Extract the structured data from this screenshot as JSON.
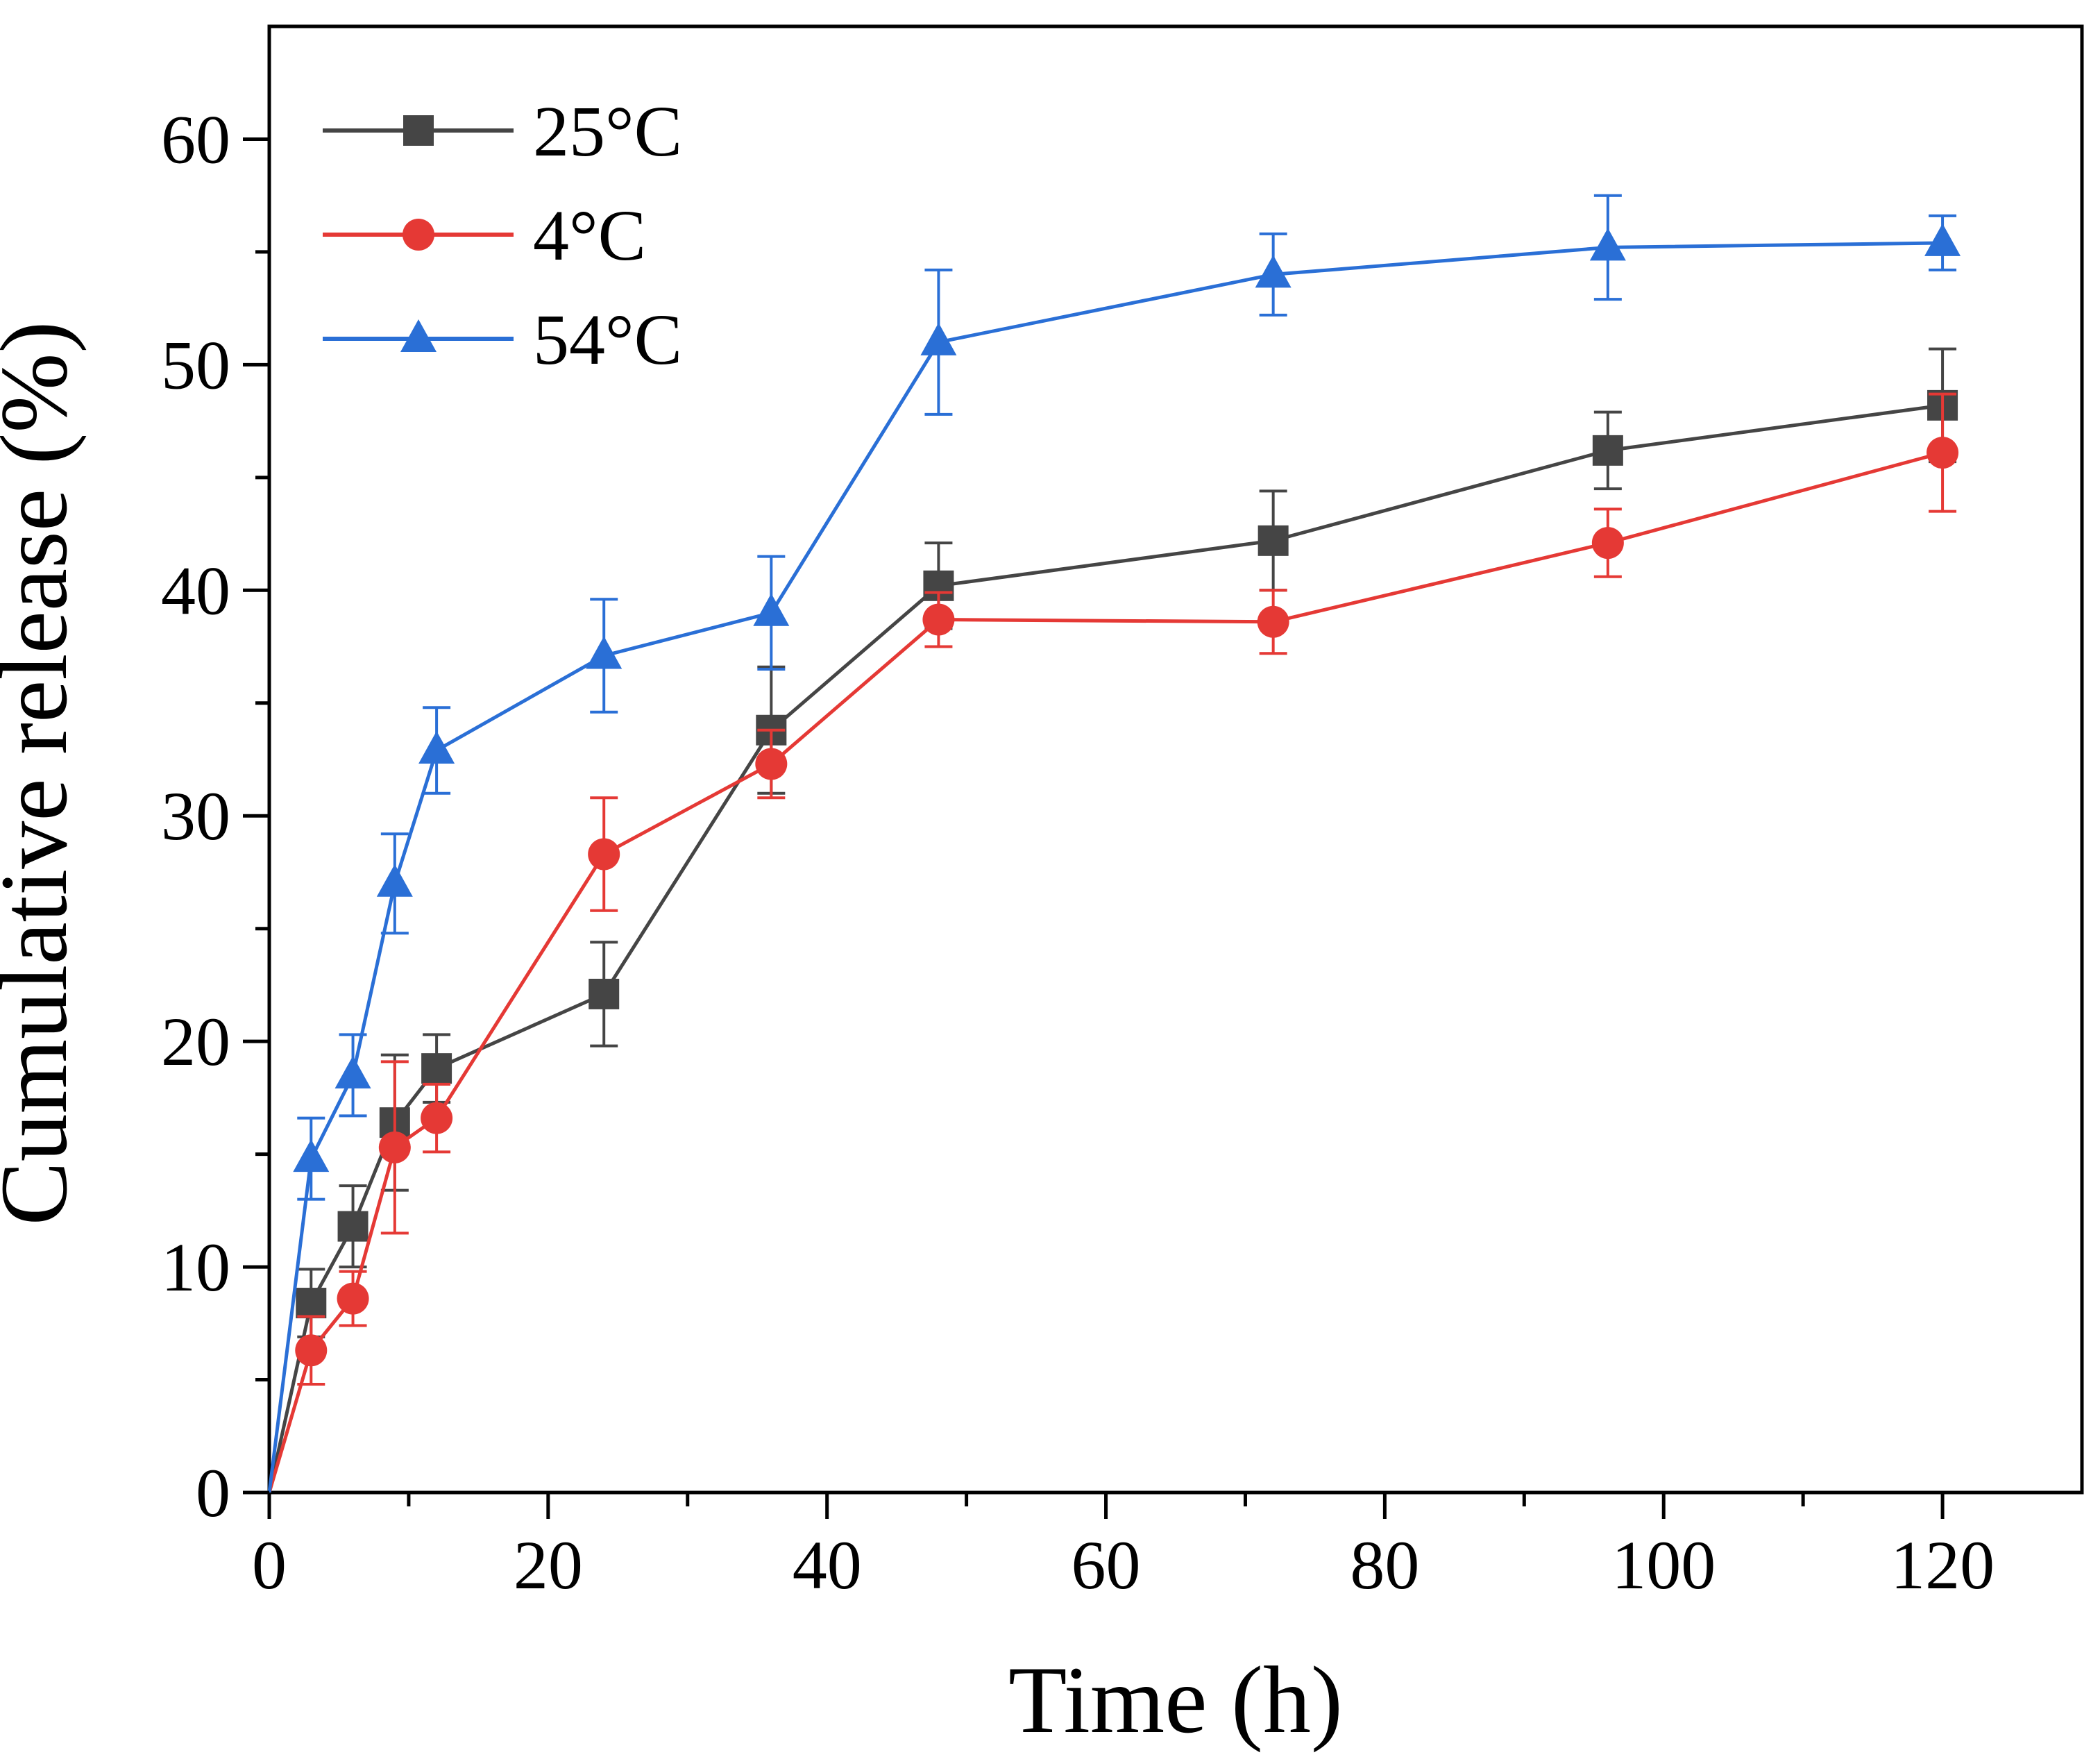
{
  "chart_data": {
    "type": "line",
    "title": "",
    "xlabel": "Time (h)",
    "ylabel": "Cumulative release (%)",
    "xlim": [
      0,
      130
    ],
    "ylim": [
      0,
      65
    ],
    "xticks": [
      0,
      20,
      40,
      60,
      80,
      100,
      120
    ],
    "yticks": [
      0,
      10,
      20,
      30,
      40,
      50,
      60
    ],
    "grid": false,
    "legend_position": "top-left",
    "x": [
      0,
      3,
      6,
      9,
      12,
      24,
      36,
      48,
      72,
      96,
      120
    ],
    "series": [
      {
        "name": "25°C",
        "color": "#454545",
        "marker": "square",
        "values": [
          0,
          8.4,
          11.8,
          16.4,
          18.8,
          22.1,
          33.8,
          40.2,
          42.2,
          46.2,
          48.2
        ],
        "error": [
          0,
          1.5,
          1.8,
          3.0,
          1.5,
          2.3,
          2.8,
          1.9,
          2.2,
          1.7,
          2.5
        ]
      },
      {
        "name": "4°C",
        "color": "#e53935",
        "marker": "circle",
        "values": [
          0,
          6.3,
          8.6,
          15.3,
          16.6,
          28.3,
          32.3,
          38.7,
          38.6,
          42.1,
          46.1
        ],
        "error": [
          0,
          1.5,
          1.2,
          3.8,
          1.5,
          2.5,
          1.5,
          1.2,
          1.4,
          1.5,
          2.6
        ]
      },
      {
        "name": "54°C",
        "color": "#2a6fd6",
        "marker": "triangle",
        "values": [
          0,
          14.8,
          18.5,
          27.0,
          32.9,
          37.1,
          39.0,
          51.0,
          54.0,
          55.2,
          55.4
        ],
        "error": [
          0,
          1.8,
          1.8,
          2.2,
          1.9,
          2.5,
          2.5,
          3.2,
          1.8,
          2.3,
          1.2
        ]
      }
    ]
  }
}
